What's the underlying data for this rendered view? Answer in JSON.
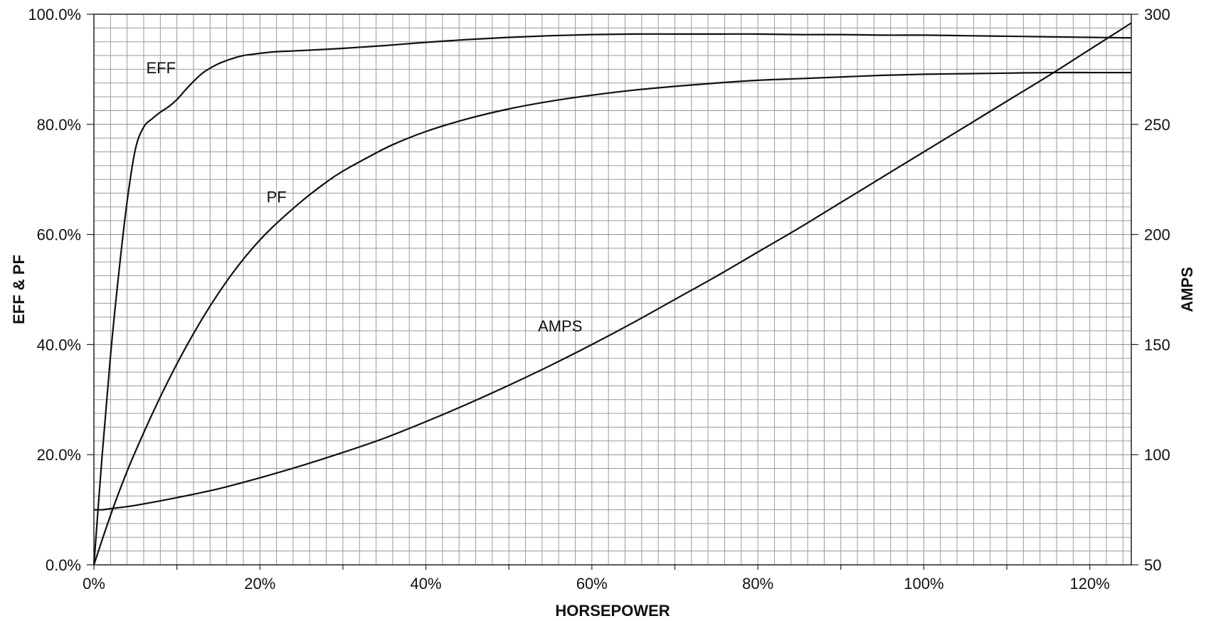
{
  "chart_data": {
    "type": "line",
    "xlabel": "HORSEPOWER",
    "ylabel": "EFF & PF",
    "y2label": "AMPS",
    "xlim": [
      0,
      125
    ],
    "ylim": [
      0,
      100
    ],
    "y2lim": [
      50,
      300
    ],
    "grid": true,
    "legend": "none (series labeled inline on the curves)",
    "x_ticks": [
      "0%",
      "20%",
      "40%",
      "60%",
      "80%",
      "100%",
      "120%"
    ],
    "y_ticks": [
      "0.0%",
      "20.0%",
      "40.0%",
      "60.0%",
      "80.0%",
      "100.0%"
    ],
    "y2_ticks": [
      "50",
      "100",
      "150",
      "200",
      "250",
      "300"
    ],
    "series": [
      {
        "name": "EFF",
        "axis": "left",
        "x": [
          0,
          1,
          2,
          3,
          4,
          5,
          6,
          7,
          8,
          9,
          10,
          11,
          12,
          13,
          14,
          15,
          16,
          17,
          18,
          19,
          20,
          22,
          25,
          30,
          35,
          40,
          45,
          50,
          55,
          60,
          65,
          70,
          75,
          80,
          85,
          90,
          95,
          100,
          105,
          110,
          115,
          120,
          125
        ],
        "values": [
          0,
          20,
          38,
          53,
          66,
          75.5,
          79.5,
          81,
          82.2,
          83.2,
          84.5,
          86.2,
          87.8,
          89.2,
          90.2,
          91,
          91.6,
          92.1,
          92.5,
          92.7,
          92.9,
          93.2,
          93.4,
          93.8,
          94.3,
          94.9,
          95.4,
          95.8,
          96.1,
          96.3,
          96.4,
          96.4,
          96.4,
          96.4,
          96.3,
          96.3,
          96.2,
          96.2,
          96.1,
          96,
          95.9,
          95.8,
          95.7
        ]
      },
      {
        "name": "PF",
        "axis": "left",
        "x": [
          0,
          2,
          4,
          6,
          8,
          10,
          12,
          14,
          16,
          18,
          20,
          22,
          25,
          28,
          30,
          33,
          36,
          40,
          45,
          50,
          55,
          60,
          65,
          70,
          75,
          80,
          85,
          90,
          95,
          100,
          105,
          110,
          115,
          120,
          125
        ],
        "values": [
          0,
          9,
          17,
          24,
          30.5,
          36.5,
          42,
          47,
          51.5,
          55.5,
          59,
          62,
          66,
          69.5,
          71.5,
          74,
          76.3,
          78.7,
          81,
          82.8,
          84.2,
          85.3,
          86.2,
          86.9,
          87.5,
          88,
          88.3,
          88.6,
          88.9,
          89.1,
          89.2,
          89.3,
          89.4,
          89.4,
          89.4
        ]
      },
      {
        "name": "AMPS",
        "axis": "right",
        "x": [
          0,
          1,
          2,
          5,
          10,
          15,
          20,
          25,
          30,
          35,
          40,
          45,
          50,
          55,
          60,
          65,
          70,
          75,
          80,
          85,
          90,
          95,
          100,
          105,
          110,
          115,
          120,
          125
        ],
        "values": [
          75,
          75,
          75.5,
          77,
          80.5,
          84.5,
          89.5,
          95,
          101,
          107.5,
          115,
          123,
          131.5,
          140.5,
          150,
          160,
          170.5,
          181,
          192,
          203,
          214.5,
          226,
          237.5,
          249,
          260.5,
          272,
          284,
          296
        ]
      }
    ]
  }
}
